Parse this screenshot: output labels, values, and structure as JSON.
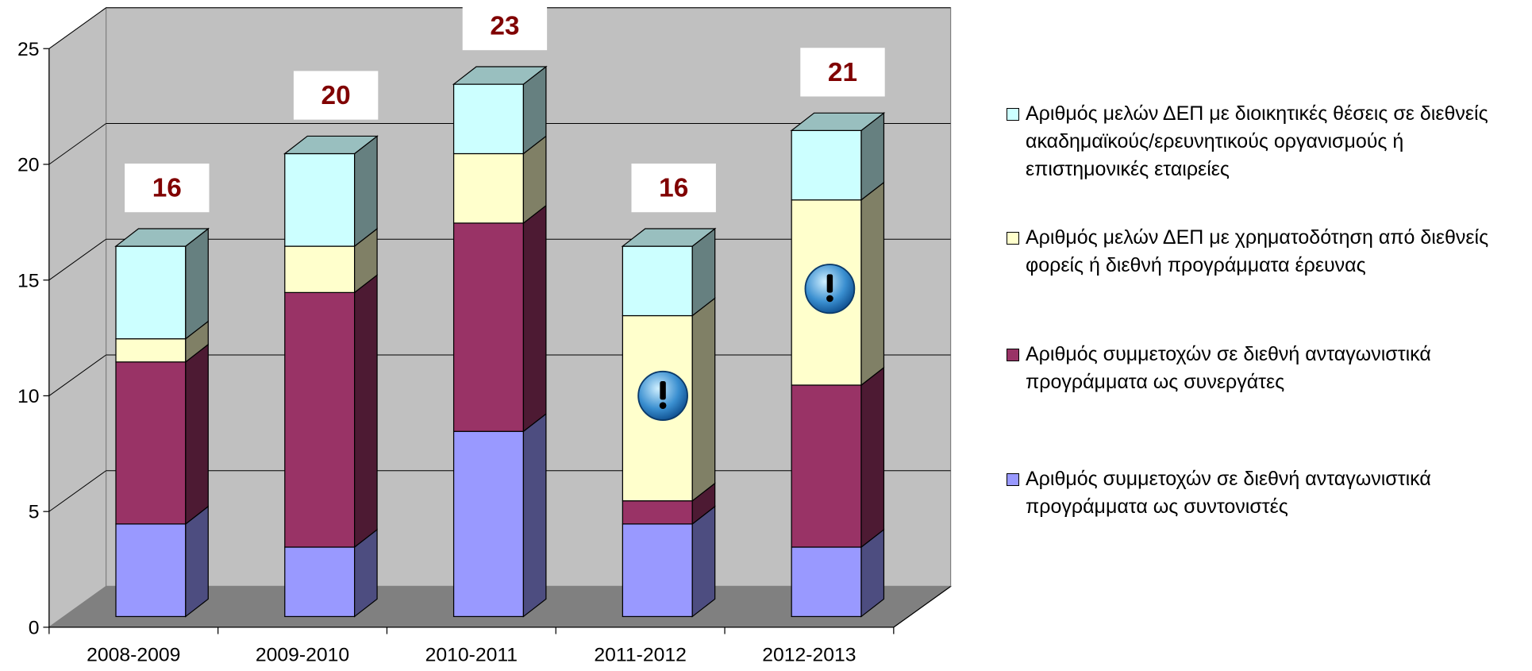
{
  "chart_data": {
    "type": "bar3d_stacked",
    "categories": [
      "2008-2009",
      "2009-2010",
      "2010-2011",
      "2011-2012",
      "2012-2013"
    ],
    "series": [
      {
        "name": "Αριθμός συμμετοχών σε διεθνή ανταγωνιστικά προγράμματα ως συντονιστές",
        "color": "#9999ff",
        "values": [
          4,
          3,
          8,
          4,
          3
        ]
      },
      {
        "name": "Αριθμός συμμετοχών σε διεθνή ανταγωνιστικά προγράμματα ως συνεργάτες",
        "color": "#993366",
        "values": [
          7,
          11,
          9,
          1,
          7
        ]
      },
      {
        "name": "Αριθμός μελών ΔΕΠ με χρηματοδότηση από διεθνείς φορείς ή διεθνή προγράμματα έρευνας",
        "color": "#ffffcc",
        "values": [
          1,
          2,
          3,
          8,
          8
        ]
      },
      {
        "name": "Αριθμός μελών ΔΕΠ με διοικητικές θέσεις σε διεθνείς ακαδημαϊκούς/ερευνητικούς οργανισμούς ή επιστημονικές εταιρείες",
        "color": "#ccffff",
        "values": [
          4,
          4,
          3,
          3,
          3
        ]
      }
    ],
    "totals": [
      16,
      20,
      23,
      16,
      21
    ],
    "ylim": [
      0,
      25
    ],
    "yticks": [
      0,
      5,
      10,
      15,
      20,
      25
    ],
    "grid": true,
    "legend": "right"
  }
}
